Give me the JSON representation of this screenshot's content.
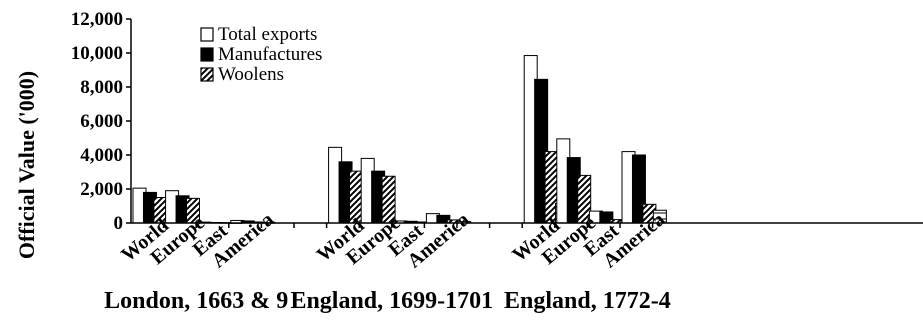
{
  "chart_data": {
    "type": "bar",
    "ylabel": "Official Value ('000)",
    "ylim": [
      0,
      12000
    ],
    "yticks": [
      0,
      2000,
      4000,
      6000,
      8000,
      10000,
      12000
    ],
    "ytick_labels": [
      "0",
      "2,000",
      "4,000",
      "6,000",
      "8,000",
      "10,000",
      "12,000"
    ],
    "grid": false,
    "legend_position": "top-left",
    "groups": [
      {
        "label": "London, 1663 & 9",
        "categories": [
          "World",
          "Europe",
          "East",
          "America"
        ],
        "series_values": {
          "Total exports": [
            2050,
            1900,
            40,
            150
          ],
          "Manufactures": [
            1800,
            1600,
            30,
            120
          ],
          "Woolens": [
            1500,
            1450,
            20,
            60
          ],
          "Other": [
            60,
            50,
            10,
            20
          ]
        }
      },
      {
        "label": "England, 1699-1701",
        "categories": [
          "World",
          "Europe",
          "East",
          "America"
        ],
        "series_values": {
          "Total exports": [
            4450,
            3800,
            120,
            550
          ],
          "Manufactures": [
            3600,
            3050,
            100,
            450
          ],
          "Woolens": [
            3050,
            2750,
            60,
            180
          ],
          "Other": [
            150,
            80,
            30,
            80
          ]
        }
      },
      {
        "label": "England, 1772-4",
        "categories": [
          "World",
          "Europe",
          "East",
          "America"
        ],
        "series_values": {
          "Total exports": [
            9850,
            4950,
            700,
            4200
          ],
          "Manufactures": [
            8450,
            3850,
            650,
            4000
          ],
          "Woolens": [
            4200,
            2800,
            200,
            1100
          ],
          "Other": [
            1150,
            300,
            150,
            750
          ]
        }
      }
    ],
    "legend": [
      {
        "name": "Total exports",
        "pattern": "white"
      },
      {
        "name": "Manufactures",
        "pattern": "black"
      },
      {
        "name": "Woolens",
        "pattern": "diagonal"
      }
    ],
    "series_styles": {
      "Total exports": "white",
      "Manufactures": "black",
      "Woolens": "diagonal",
      "Other": "other"
    }
  }
}
